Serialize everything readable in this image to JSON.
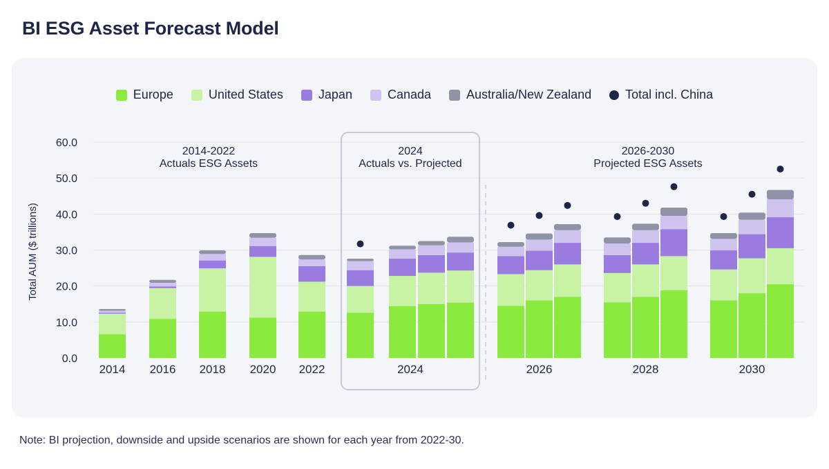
{
  "title": "BI ESG Asset Forecast Model",
  "note": "Note: BI projection, downside and upside scenarios are shown for each year from 2022-30.",
  "colors": {
    "europe": "#8bea3e",
    "united_states": "#c8f2a4",
    "japan": "#9a7ce0",
    "canada": "#cfc3f0",
    "australia_nz": "#9093a6",
    "total_china": "#1e2547"
  },
  "legend": [
    {
      "label": "Europe",
      "key": "europe",
      "kind": "swatch"
    },
    {
      "label": "United States",
      "key": "united_states",
      "kind": "swatch"
    },
    {
      "label": "Japan",
      "key": "japan",
      "kind": "swatch"
    },
    {
      "label": "Canada",
      "key": "canada",
      "kind": "swatch"
    },
    {
      "label": "Australia/New Zealand",
      "key": "australia_nz",
      "kind": "swatch"
    },
    {
      "label": "Total incl. China",
      "key": "total_china",
      "kind": "dot"
    }
  ],
  "chart_data": {
    "type": "bar",
    "stacked": true,
    "ylabel": "Total AUM ($ trillions)",
    "ylim": [
      0,
      60
    ],
    "yticks": [
      "0.0",
      "10.0",
      "20.0",
      "30.0",
      "40.0",
      "50.0",
      "60.0"
    ],
    "annotations": [
      {
        "line1": "2014-2022",
        "line2": "Actuals ESG Assets"
      },
      {
        "line1": "2024",
        "line2": "Actuals vs. Projected"
      },
      {
        "line1": "2026-2030",
        "line2": "Projected ESG Assets"
      }
    ],
    "series_names": [
      "Europe",
      "United States",
      "Japan",
      "Canada",
      "Australia/New Zealand"
    ],
    "groups": [
      {
        "label": "2014",
        "bars": [
          {
            "values": [
              6.6,
              5.7,
              0.3,
              0.5,
              0.5
            ],
            "total_china": null
          }
        ]
      },
      {
        "label": "2016",
        "bars": [
          {
            "values": [
              10.9,
              8.5,
              0.5,
              1.0,
              0.8
            ],
            "total_china": null
          }
        ]
      },
      {
        "label": "2018",
        "bars": [
          {
            "values": [
              12.9,
              12.0,
              2.2,
              1.8,
              1.0
            ],
            "total_china": null
          }
        ]
      },
      {
        "label": "2020",
        "bars": [
          {
            "values": [
              11.2,
              16.9,
              3.0,
              2.3,
              1.3
            ],
            "total_china": null
          }
        ]
      },
      {
        "label": "2022",
        "bars": [
          {
            "values": [
              12.9,
              8.3,
              4.3,
              1.9,
              1.2
            ],
            "total_china": null
          }
        ]
      },
      {
        "label": "2024",
        "bars": [
          {
            "values": [
              12.6,
              7.4,
              4.4,
              2.5,
              0.7
            ],
            "total_china": 31.7
          },
          {
            "values": [
              14.4,
              8.4,
              4.8,
              2.6,
              1.0
            ],
            "total_china": null
          },
          {
            "values": [
              15.0,
              8.7,
              4.9,
              2.7,
              1.2
            ],
            "total_china": null
          },
          {
            "values": [
              15.4,
              8.9,
              5.0,
              2.8,
              1.6
            ],
            "total_china": null
          }
        ]
      },
      {
        "label": "2026",
        "bars": [
          {
            "values": [
              14.5,
              8.8,
              5.0,
              2.6,
              1.3
            ],
            "total_china": 36.9
          },
          {
            "values": [
              16.0,
              8.4,
              5.4,
              3.1,
              1.7
            ],
            "total_china": 39.6
          },
          {
            "values": [
              17.0,
              9.0,
              6.0,
              3.5,
              1.7
            ],
            "total_china": 42.4
          }
        ]
      },
      {
        "label": "2028",
        "bars": [
          {
            "values": [
              15.5,
              8.1,
              5.0,
              3.2,
              1.7
            ],
            "total_china": 39.3
          },
          {
            "values": [
              17.0,
              9.0,
              6.0,
              3.5,
              1.8
            ],
            "total_china": 43.0
          },
          {
            "values": [
              18.8,
              9.5,
              7.5,
              3.7,
              2.3
            ],
            "total_china": 47.6
          }
        ]
      },
      {
        "label": "2030",
        "bars": [
          {
            "values": [
              16.0,
              8.6,
              5.3,
              3.2,
              1.6
            ],
            "total_china": 39.3
          },
          {
            "values": [
              18.0,
              9.7,
              6.7,
              4.0,
              2.0
            ],
            "total_china": 45.5
          },
          {
            "values": [
              20.5,
              10.0,
              8.6,
              5.0,
              2.6
            ],
            "total_china": 52.5
          }
        ]
      }
    ]
  }
}
